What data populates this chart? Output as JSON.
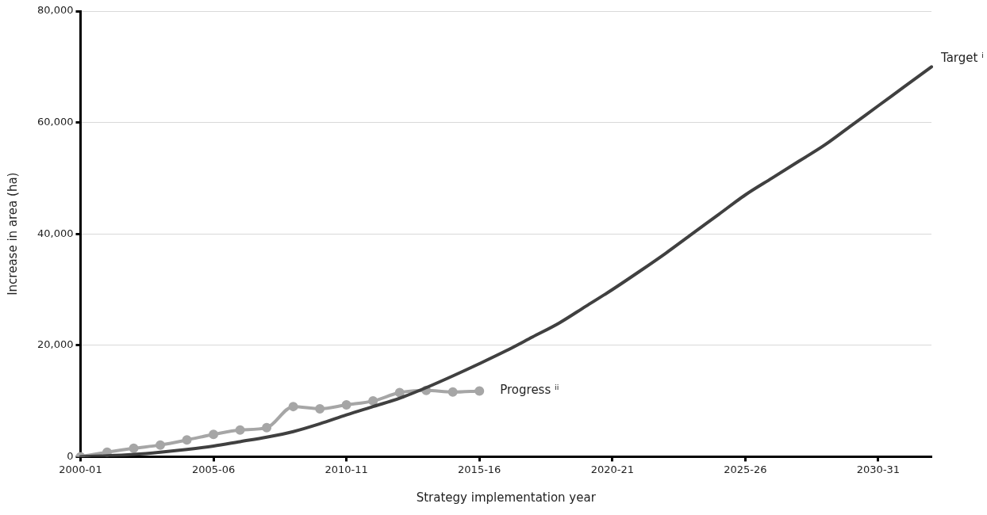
{
  "chart_data": {
    "type": "line",
    "xlabel": "Strategy implementation year",
    "ylabel": "Increase in area (ha)",
    "categories": [
      "2000-01",
      null,
      null,
      null,
      null,
      "2005-06",
      null,
      null,
      null,
      null,
      "2010-11",
      null,
      null,
      null,
      null,
      "2015-16",
      null,
      null,
      null,
      null,
      "2020-21",
      null,
      null,
      null,
      null,
      "2025-26",
      null,
      null,
      null,
      null,
      "2030-31",
      null,
      null
    ],
    "ylim": [
      0,
      80000
    ],
    "yticks": [
      0,
      {
        "value": 20000,
        "label": "20,000"
      },
      {
        "value": 40000,
        "label": "40,000"
      },
      {
        "value": 60000,
        "label": "60,000"
      },
      {
        "value": 80000,
        "label": "80,000"
      }
    ],
    "grid": "y",
    "legend": false,
    "series": [
      {
        "name": "Target ⁱ",
        "color": "#404040",
        "marker": "none",
        "values": [
          0,
          150,
          400,
          800,
          1300,
          1900,
          2700,
          3500,
          4500,
          5900,
          7500,
          9000,
          10500,
          12400,
          14500,
          16700,
          19000,
          21500,
          24000,
          27000,
          30000,
          33200,
          36500,
          40000,
          43500,
          47000,
          50000,
          53000,
          56000,
          59500,
          63000,
          66500,
          70000
        ]
      },
      {
        "name": "Progress ⁱⁱ",
        "color": "#a6a6a6",
        "marker": "circle",
        "values": [
          0,
          800,
          1500,
          2100,
          3000,
          4000,
          4800,
          5200,
          9000,
          8600,
          9300,
          10000,
          11500,
          11900,
          11600,
          11800,
          null,
          null,
          null,
          null,
          null,
          null,
          null,
          null,
          null,
          null,
          null,
          null,
          null,
          null,
          null,
          null,
          null
        ]
      }
    ]
  }
}
